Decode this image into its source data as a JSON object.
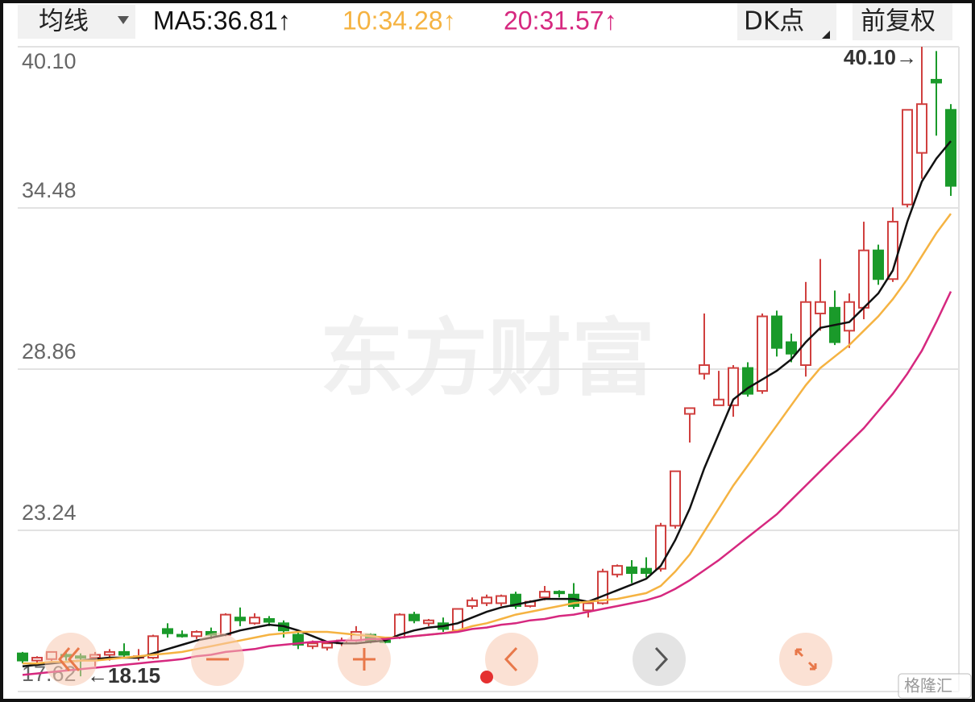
{
  "header": {
    "dropdown": "均线",
    "dk_button": "DK点",
    "adjust_button": "前复权"
  },
  "watermark": "东方财富",
  "source_mark": "格隆汇",
  "chart_data": {
    "type": "candlestick",
    "up_color": "#d0403f",
    "down_color": "#1a9a2a",
    "open": [
      18.95,
      18.7,
      18.75,
      18.9,
      18.85,
      18.8,
      18.9,
      19.0,
      18.8,
      18.8,
      19.8,
      19.6,
      19.55,
      19.7,
      19.6,
      20.2,
      20.0,
      20.15,
      20.0,
      19.6,
      19.2,
      19.15,
      19.3,
      19.4,
      19.6,
      19.4,
      19.5,
      20.3,
      20.0,
      20.0,
      19.75,
      20.6,
      20.7,
      20.7,
      21.0,
      20.6,
      20.9,
      21.1,
      21.0,
      20.45,
      20.7,
      21.7,
      21.95,
      21.9,
      21.9,
      23.4,
      27.3,
      28.7,
      27.6,
      27.6,
      28.9,
      28.1,
      30.7,
      29.8,
      29.0,
      30.8,
      31.0,
      30.2,
      31.0,
      33.0,
      32.0,
      34.6,
      36.4,
      38.95,
      37.9
    ],
    "high": [
      19.0,
      18.85,
      19.0,
      19.05,
      18.95,
      19.0,
      19.1,
      19.3,
      19.1,
      19.6,
      20.0,
      19.75,
      19.75,
      19.85,
      20.35,
      20.55,
      20.35,
      20.25,
      20.1,
      19.7,
      19.4,
      19.35,
      19.5,
      19.9,
      19.65,
      19.5,
      20.35,
      20.4,
      20.15,
      20.2,
      20.5,
      20.9,
      21.0,
      21.0,
      21.1,
      20.8,
      21.3,
      21.15,
      21.4,
      20.8,
      21.9,
      22.05,
      22.2,
      22.3,
      23.5,
      25.3,
      27.5,
      30.8,
      28.8,
      29.0,
      29.1,
      30.8,
      30.9,
      30.1,
      31.9,
      32.7,
      31.6,
      31.5,
      34.0,
      33.2,
      34.5,
      37.9,
      40.1,
      39.95,
      38.1
    ],
    "low": [
      18.6,
      18.55,
      18.6,
      18.7,
      18.15,
      18.5,
      18.7,
      18.8,
      18.7,
      18.75,
      19.5,
      19.5,
      19.45,
      19.45,
      19.55,
      19.9,
      19.95,
      19.9,
      19.5,
      19.1,
      19.1,
      19.05,
      19.2,
      19.35,
      19.3,
      19.3,
      19.45,
      20.0,
      19.9,
      19.7,
      19.7,
      20.5,
      20.6,
      20.6,
      20.5,
      20.55,
      20.8,
      20.9,
      20.5,
      20.2,
      20.65,
      21.6,
      21.4,
      21.6,
      21.8,
      23.3,
      26.3,
      28.5,
      27.6,
      27.2,
      27.9,
      28.0,
      29.3,
      29.1,
      28.6,
      30.2,
      29.7,
      29.6,
      30.6,
      31.8,
      31.9,
      34.5,
      35.5,
      37.0,
      34.9
    ],
    "close": [
      18.7,
      18.8,
      19.0,
      18.85,
      18.8,
      18.9,
      19.0,
      18.9,
      18.85,
      19.55,
      19.65,
      19.55,
      19.7,
      19.6,
      20.3,
      20.1,
      20.2,
      20.05,
      19.75,
      19.25,
      19.3,
      19.3,
      19.4,
      19.7,
      19.4,
      19.35,
      20.3,
      20.1,
      20.1,
      19.8,
      20.5,
      20.8,
      20.9,
      20.95,
      20.6,
      20.75,
      21.1,
      21.05,
      20.6,
      20.7,
      21.8,
      22.0,
      21.75,
      21.75,
      23.4,
      25.3,
      27.5,
      29.0,
      27.8,
      28.9,
      28.0,
      30.7,
      29.6,
      29.4,
      31.2,
      31.2,
      29.8,
      31.2,
      33.0,
      32.0,
      34.0,
      37.9,
      38.1,
      38.85,
      35.25
    ],
    "series": [
      {
        "name": "MA5:36.81↑",
        "color": "#111111",
        "values": [
          18.5,
          18.55,
          18.6,
          18.65,
          18.7,
          18.75,
          18.8,
          18.8,
          18.8,
          18.95,
          19.1,
          19.25,
          19.4,
          19.5,
          19.6,
          19.75,
          19.85,
          19.95,
          19.9,
          19.75,
          19.55,
          19.35,
          19.3,
          19.3,
          19.35,
          19.4,
          19.6,
          19.75,
          19.85,
          19.9,
          20.0,
          20.2,
          20.4,
          20.55,
          20.65,
          20.75,
          20.85,
          20.85,
          20.85,
          20.75,
          20.95,
          21.15,
          21.35,
          21.55,
          22.0,
          22.9,
          24.0,
          25.4,
          26.6,
          27.8,
          28.2,
          28.5,
          28.8,
          29.2,
          29.8,
          30.3,
          30.4,
          30.5,
          31.0,
          31.5,
          32.3,
          34.0,
          35.4,
          36.2,
          36.81
        ]
      },
      {
        "name": "10:34.28↑",
        "color": "#f5b342",
        "values": [
          18.6,
          18.6,
          18.65,
          18.65,
          18.7,
          18.7,
          18.75,
          18.8,
          18.85,
          18.9,
          18.95,
          19.0,
          19.1,
          19.2,
          19.3,
          19.4,
          19.5,
          19.6,
          19.65,
          19.7,
          19.7,
          19.7,
          19.65,
          19.6,
          19.55,
          19.5,
          19.5,
          19.55,
          19.6,
          19.65,
          19.75,
          19.9,
          20.0,
          20.15,
          20.3,
          20.4,
          20.5,
          20.6,
          20.7,
          20.75,
          20.8,
          20.85,
          20.95,
          21.05,
          21.3,
          21.8,
          22.4,
          23.2,
          24.0,
          24.8,
          25.5,
          26.2,
          26.9,
          27.6,
          28.3,
          28.9,
          29.3,
          29.7,
          30.2,
          30.7,
          31.3,
          32.0,
          32.8,
          33.6,
          34.28
        ]
      },
      {
        "name": "20:31.57↑",
        "color": "#d6287f",
        "values": [
          18.2,
          18.25,
          18.3,
          18.35,
          18.4,
          18.45,
          18.5,
          18.55,
          18.6,
          18.65,
          18.7,
          18.75,
          18.85,
          18.9,
          19.0,
          19.05,
          19.1,
          19.2,
          19.25,
          19.3,
          19.35,
          19.35,
          19.4,
          19.4,
          19.45,
          19.45,
          19.5,
          19.55,
          19.6,
          19.65,
          19.7,
          19.8,
          19.85,
          19.95,
          20.0,
          20.1,
          20.15,
          20.25,
          20.3,
          20.4,
          20.5,
          20.6,
          20.7,
          20.8,
          20.95,
          21.2,
          21.5,
          21.85,
          22.2,
          22.6,
          23.0,
          23.4,
          23.8,
          24.3,
          24.8,
          25.3,
          25.8,
          26.3,
          26.8,
          27.4,
          28.0,
          28.7,
          29.5,
          30.5,
          31.57
        ]
      }
    ],
    "ylim": [
      17.62,
      40.1
    ],
    "yticks": [
      17.62,
      23.24,
      28.86,
      34.48,
      {
        "value": 40.1,
        "label": "40.10"
      }
    ],
    "grid": true,
    "annotations": [
      "40.10→",
      "←18.15"
    ]
  }
}
